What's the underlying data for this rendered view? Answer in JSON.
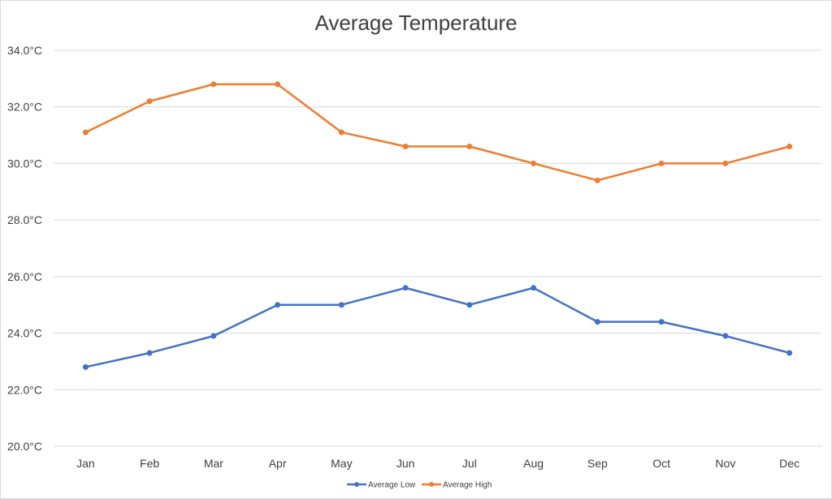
{
  "chart_data": {
    "type": "line",
    "title": "Average Temperature",
    "xlabel": "",
    "ylabel": "",
    "categories": [
      "Jan",
      "Feb",
      "Mar",
      "Apr",
      "May",
      "Jun",
      "Jul",
      "Aug",
      "Sep",
      "Oct",
      "Nov",
      "Dec"
    ],
    "series": [
      {
        "name": "Average Low",
        "color": "#4472c4",
        "values": [
          22.8,
          23.3,
          23.9,
          25.0,
          25.0,
          25.6,
          25.0,
          25.6,
          24.4,
          24.4,
          23.9,
          23.3
        ]
      },
      {
        "name": "Average High",
        "color": "#ed7d31",
        "values": [
          31.1,
          32.2,
          32.8,
          32.8,
          31.1,
          30.6,
          30.6,
          30.0,
          29.4,
          30.0,
          30.0,
          30.6
        ]
      }
    ],
    "ylim": [
      20,
      34
    ],
    "yticks": [
      "20.0°C",
      "22.0°C",
      "24.0°C",
      "26.0°C",
      "28.0°C",
      "30.0°C",
      "32.0°C",
      "34.0°C"
    ],
    "grid": true,
    "legend_position": "bottom",
    "gridline_color": "#d9d9d9"
  }
}
